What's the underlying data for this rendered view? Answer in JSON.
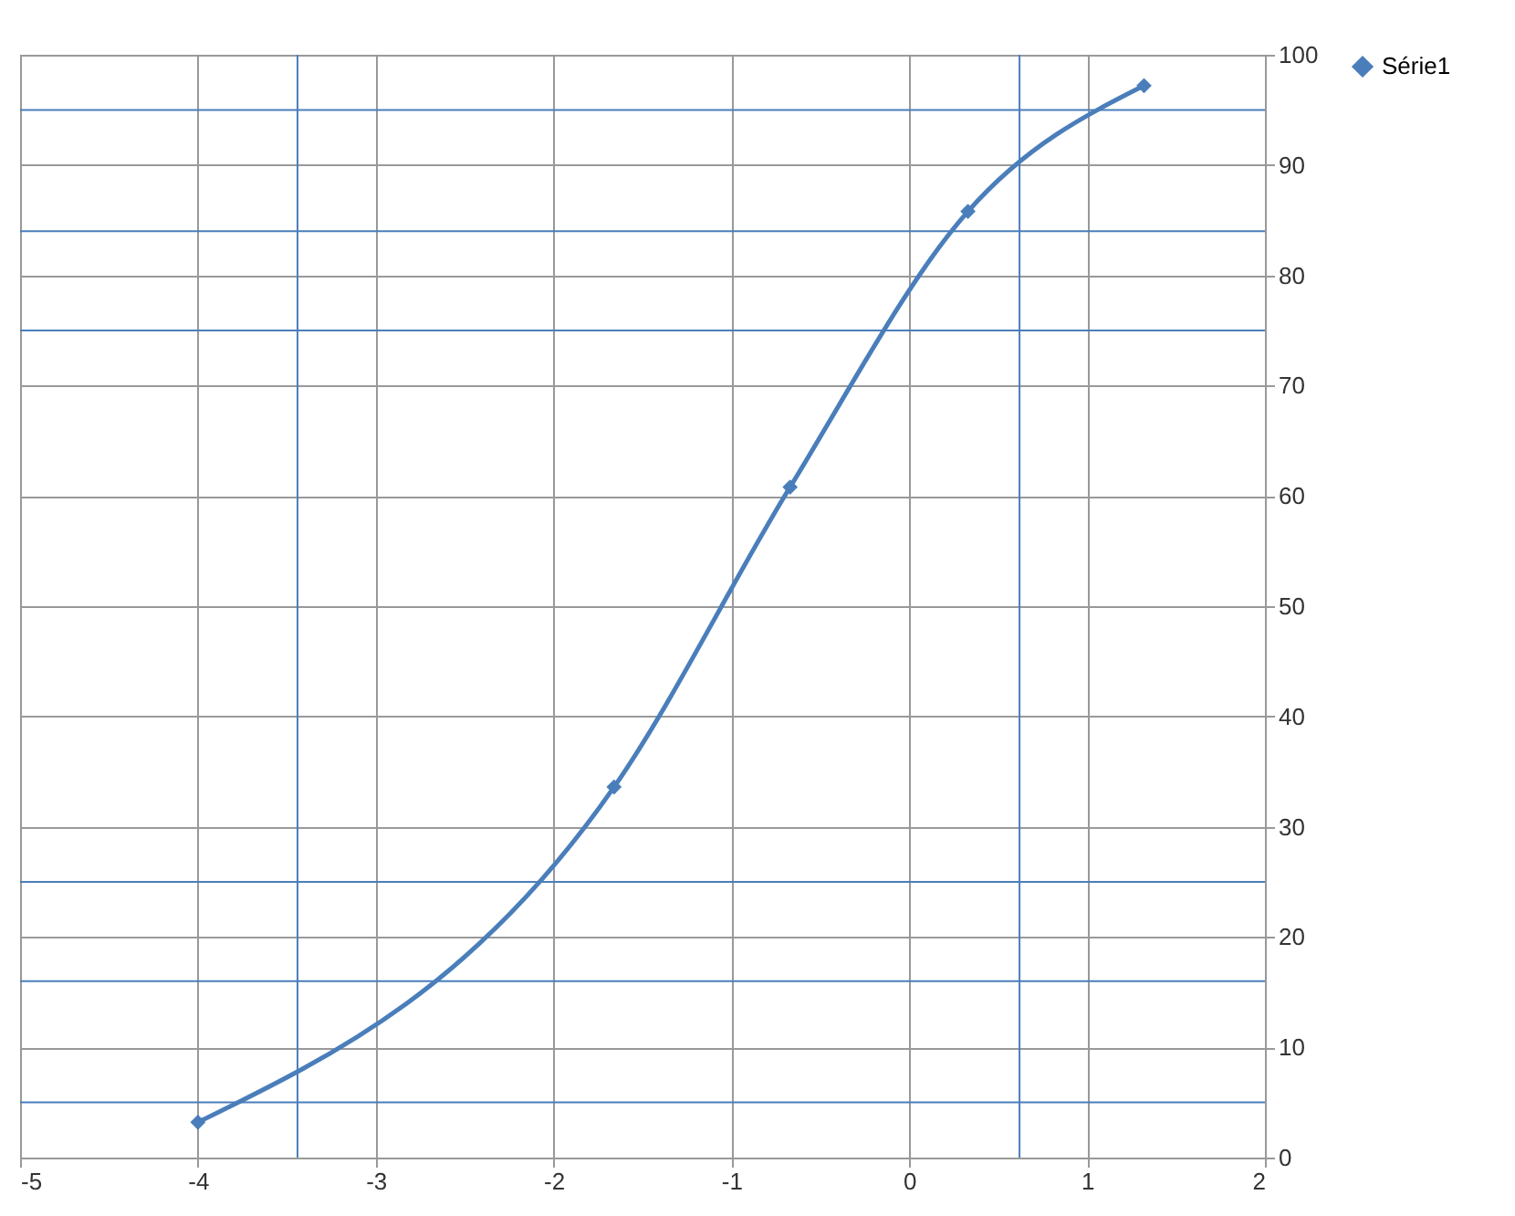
{
  "chart_data": {
    "type": "line",
    "x": [
      -4,
      -1.66,
      -0.67,
      0.33,
      1.32
    ],
    "series": [
      {
        "name": "Série1",
        "color": "#4a7ebb",
        "values": [
          3.2,
          33.6,
          60.8,
          85.8,
          97.2
        ]
      }
    ],
    "xlim": [
      -5,
      2
    ],
    "xticks": [
      -5,
      -4,
      -3,
      -2,
      -1,
      0,
      1,
      2
    ],
    "ylim": [
      0,
      100
    ],
    "yticks": [
      0,
      10,
      20,
      30,
      40,
      50,
      60,
      70,
      80,
      90,
      100
    ],
    "grid": true,
    "legend": "right",
    "marker": "diamond",
    "line_style": "solid",
    "ref_lines": [
      {
        "axis": "y",
        "value": 5,
        "color": "#4a7ebb"
      },
      {
        "axis": "y",
        "value": 16,
        "color": "#4a7ebb"
      },
      {
        "axis": "y",
        "value": 25,
        "color": "#4a7ebb"
      },
      {
        "axis": "y",
        "value": 75,
        "color": "#4a7ebb"
      },
      {
        "axis": "y",
        "value": 84,
        "color": "#4a7ebb"
      },
      {
        "axis": "y",
        "value": 95,
        "color": "#4a7ebb"
      },
      {
        "axis": "x",
        "value": -3.44,
        "color": "#4a7ebb"
      },
      {
        "axis": "x",
        "value": 0.62,
        "color": "#4a7ebb"
      }
    ]
  }
}
